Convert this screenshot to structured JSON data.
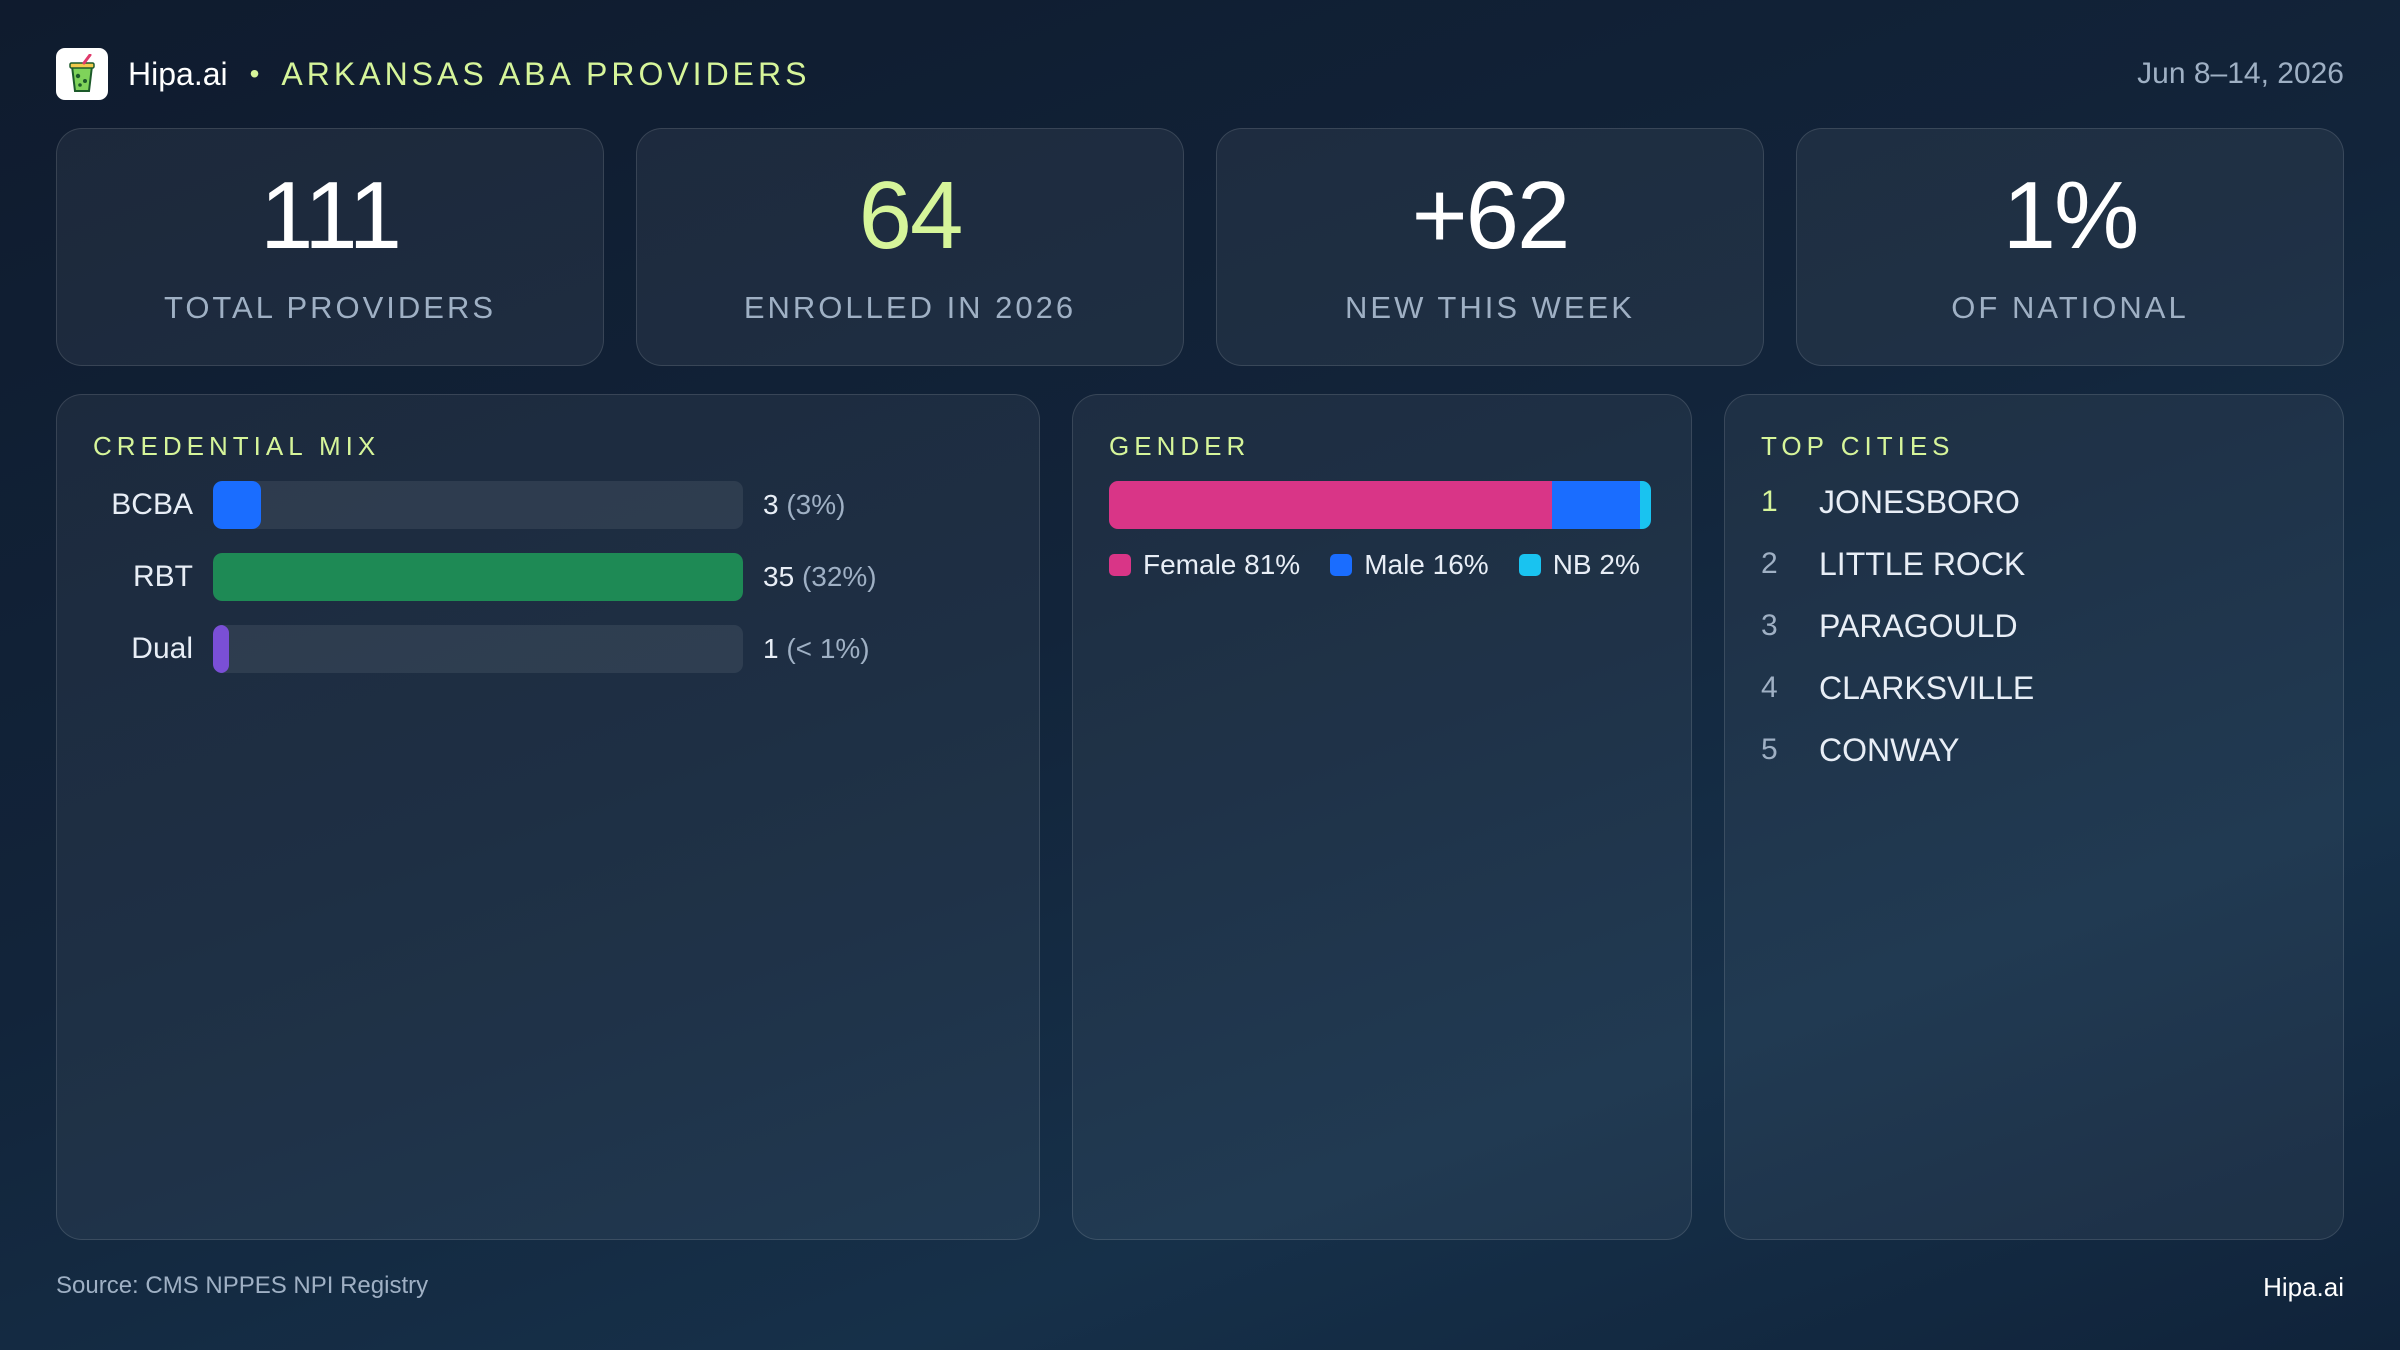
{
  "header": {
    "brand": "Hipa.ai",
    "separator": "•",
    "region_title": "ARKANSAS ABA PROVIDERS",
    "date_range": "Jun 8–14, 2026",
    "logo_icon": "drink-cup-icon"
  },
  "kpis": [
    {
      "value": "111",
      "label": "TOTAL PROVIDERS"
    },
    {
      "value": "64",
      "label": "ENROLLED IN 2026"
    },
    {
      "value": "+62",
      "label": "NEW THIS WEEK"
    },
    {
      "value": "1%",
      "label": "OF NATIONAL"
    }
  ],
  "colors": {
    "accent": "#d6f59a",
    "bcba": "#1a6dff",
    "rbt": "#1e8a55",
    "dual": "#7a4fd6",
    "female": "#d93587",
    "male": "#1a6dff",
    "nb": "#19c3f0"
  },
  "chart_data": [
    {
      "type": "bar",
      "title": "CREDENTIAL MIX",
      "categories": [
        "BCBA",
        "RBT",
        "Dual"
      ],
      "values": [
        3,
        35,
        1
      ],
      "percent_labels": [
        "(3%)",
        "(32%)",
        "(< 1%)"
      ],
      "bar_fill_fractions": [
        0.09,
        1.0,
        0.03
      ]
    },
    {
      "type": "bar",
      "title": "GENDER",
      "categories": [
        "Female",
        "Male",
        "NB"
      ],
      "values": [
        81,
        16,
        2
      ],
      "legend": [
        "Female 81%",
        "Male 16%",
        "NB 2%"
      ]
    },
    {
      "type": "table",
      "title": "TOP CITIES",
      "rows": [
        {
          "rank": "1",
          "city": "JONESBORO"
        },
        {
          "rank": "2",
          "city": "LITTLE ROCK"
        },
        {
          "rank": "3",
          "city": "PARAGOULD"
        },
        {
          "rank": "4",
          "city": "CLARKSVILLE"
        },
        {
          "rank": "5",
          "city": "CONWAY"
        }
      ]
    }
  ],
  "footer": {
    "source": "Source: CMS NPPES NPI Registry",
    "brand": "Hipa.ai"
  }
}
